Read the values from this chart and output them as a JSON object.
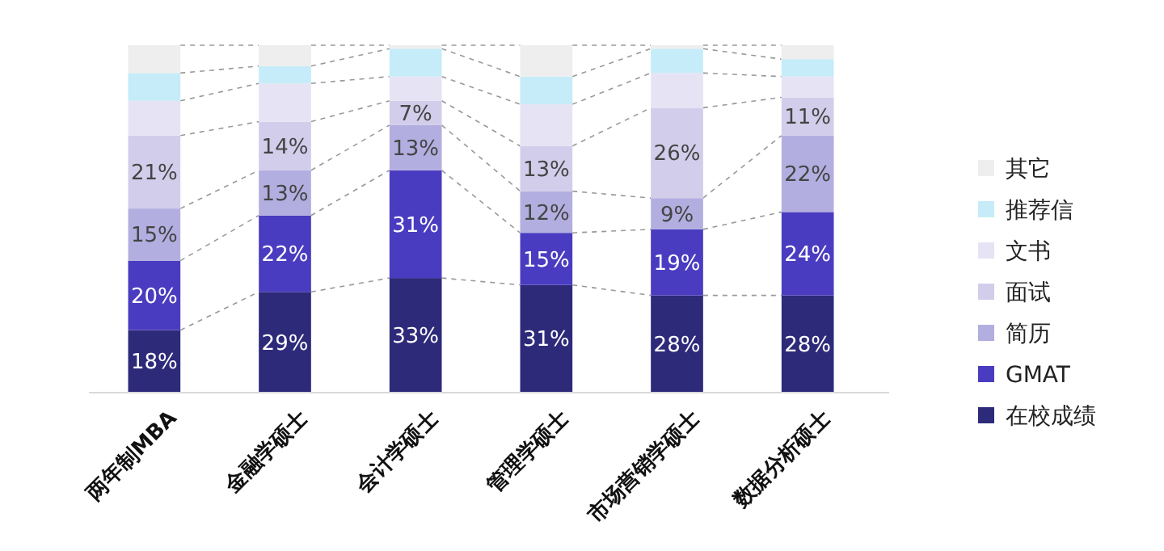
{
  "chart_data": {
    "type": "bar",
    "stacked": true,
    "categories": [
      "两年制MBA",
      "金融学硕士",
      "会计学硕士",
      "管理学硕士",
      "市场营销学硕士",
      "数据分析硕士"
    ],
    "legend": "right",
    "tick_labels": "x",
    "series": [
      {
        "name": "在校成绩",
        "color": "#2e2a7a",
        "values": [
          18,
          29,
          33,
          31,
          28,
          28
        ],
        "value_labels": [
          "18%",
          "29%",
          "33%",
          "31%",
          "28%",
          "28%"
        ]
      },
      {
        "name": "GMAT",
        "color": "#4a3cc0",
        "values": [
          20,
          22,
          31,
          15,
          19,
          24
        ],
        "value_labels": [
          "20%",
          "22%",
          "31%",
          "15%",
          "19%",
          "24%"
        ]
      },
      {
        "name": "简历",
        "color": "#b3aee0",
        "values": [
          15,
          13,
          13,
          12,
          9,
          22
        ],
        "value_labels": [
          "15%",
          "13%",
          "13%",
          "12%",
          "9%",
          "22%"
        ]
      },
      {
        "name": "面试",
        "color": "#d2cdea",
        "values": [
          21,
          14,
          7,
          13,
          26,
          11
        ],
        "value_labels": [
          "21%",
          "14%",
          "7%",
          "13%",
          "26%",
          "11%"
        ]
      },
      {
        "name": "文书",
        "color": "#e6e3f4",
        "values": [
          10,
          11,
          7,
          12,
          10,
          6
        ],
        "value_labels": [
          null,
          null,
          null,
          null,
          null,
          null
        ]
      },
      {
        "name": "推荐信",
        "color": "#c5ecf8",
        "values": [
          8,
          5,
          8,
          8,
          7,
          5
        ],
        "value_labels": [
          null,
          null,
          null,
          null,
          null,
          null
        ]
      },
      {
        "name": "其它",
        "color": "#eeeeee",
        "values": [
          8,
          6,
          1,
          9,
          1,
          4
        ],
        "value_labels": [
          null,
          null,
          null,
          null,
          null,
          null
        ]
      }
    ]
  }
}
